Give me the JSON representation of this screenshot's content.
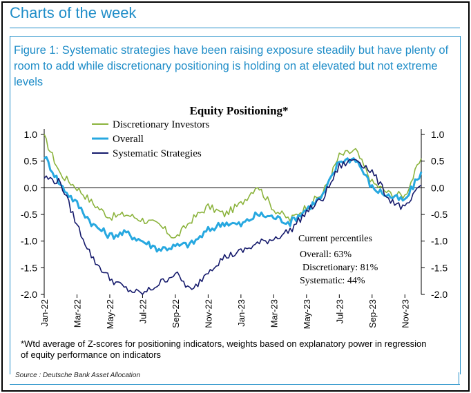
{
  "header": {
    "title": "Charts of the week"
  },
  "figure": {
    "caption": "Figure 1: Systematic strategies have been raising exposure steadily but have plenty of room to add while discretionary positioning is holding on at elevated but not extreme levels",
    "footnote": "*Wtd average of Z-scores for positioning indicators, weights based on explanatory power in regression of equity performance on indicators",
    "source": "Source : Deutsche Bank Asset Allocation"
  },
  "colors": {
    "brand": "#1f8dc8",
    "discretionary": "#8bb33c",
    "overall": "#27a8e0",
    "systematic": "#14196b"
  },
  "chart_data": {
    "type": "line",
    "title": "Equity Positioning*",
    "ylim": [
      -2.0,
      1.0
    ],
    "yticks": [
      "1.0",
      "0.5",
      "0.0",
      "-0.5",
      "-1.0",
      "-1.5",
      "-2.0"
    ],
    "xticks": [
      "Jan-22",
      "Mar-22",
      "May-22",
      "Jul-22",
      "Sep-22",
      "Nov-22",
      "Jan-23",
      "Mar-23",
      "May-23",
      "Jul-23",
      "Sep-23",
      "Nov-23"
    ],
    "x": [
      "2022-01",
      "2022-02",
      "2022-03",
      "2022-04",
      "2022-05",
      "2022-06",
      "2022-07",
      "2022-08",
      "2022-09",
      "2022-10",
      "2022-11",
      "2022-12",
      "2023-01",
      "2023-02",
      "2023-03",
      "2023-04",
      "2023-05",
      "2023-06",
      "2023-07",
      "2023-08",
      "2023-09",
      "2023-10",
      "2023-11",
      "2023-12"
    ],
    "series": [
      {
        "name": "Discretionary Investors",
        "values": [
          0.95,
          0.25,
          0.0,
          -0.3,
          -0.55,
          -0.5,
          -0.6,
          -0.7,
          -0.95,
          -0.6,
          -0.35,
          -0.5,
          -0.3,
          0.05,
          -0.4,
          -0.6,
          -0.35,
          -0.1,
          0.6,
          0.7,
          0.1,
          -0.1,
          -0.15,
          0.55
        ]
      },
      {
        "name": "Overall",
        "values": [
          0.6,
          0.05,
          -0.3,
          -0.7,
          -0.9,
          -0.85,
          -1.0,
          -1.15,
          -1.1,
          -1.05,
          -0.8,
          -0.65,
          -0.7,
          -0.5,
          -0.55,
          -0.65,
          -0.4,
          -0.15,
          0.5,
          0.55,
          0.0,
          -0.15,
          -0.25,
          0.3
        ]
      },
      {
        "name": "Systematic Strategies",
        "values": [
          0.2,
          0.1,
          -0.7,
          -1.35,
          -1.7,
          -1.9,
          -2.0,
          -1.8,
          -1.6,
          -1.95,
          -1.55,
          -1.3,
          -1.2,
          -1.05,
          -0.95,
          -0.8,
          -0.45,
          -0.2,
          0.4,
          0.55,
          0.3,
          -0.2,
          -0.4,
          0.05
        ]
      }
    ],
    "annotation": {
      "heading": "Current percentiles",
      "lines": [
        "Overall: 63%",
        "Discretionary: 81%",
        "Systematic: 44%"
      ]
    },
    "grid": false,
    "legend": "top-left"
  }
}
